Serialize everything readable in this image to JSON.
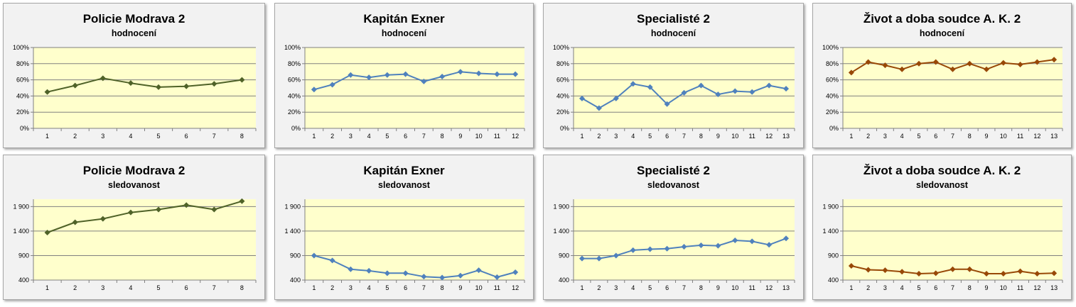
{
  "colors": {
    "plot_bg": "#ffffcc",
    "grid": "#808080",
    "series_green": "#4f6228",
    "series_blue": "#4f81bd",
    "series_brown": "#984807"
  },
  "chart_data": [
    {
      "type": "line",
      "title": "Policie Modrava 2",
      "subtitle": "hodnocení",
      "x": [
        1,
        2,
        3,
        4,
        5,
        6,
        7,
        8
      ],
      "values": [
        45,
        53,
        62,
        56,
        51,
        52,
        55,
        60
      ],
      "ylim": [
        0,
        100
      ],
      "yticks": [
        0,
        20,
        40,
        60,
        80,
        100
      ],
      "ytick_labels": [
        "0%",
        "20%",
        "40%",
        "60%",
        "80%",
        "100%"
      ],
      "color": "#4f6228",
      "grid": true,
      "legend": "none"
    },
    {
      "type": "line",
      "title": "Kapitán Exner",
      "subtitle": "hodnocení",
      "x": [
        1,
        2,
        3,
        4,
        5,
        6,
        7,
        8,
        9,
        10,
        11,
        12
      ],
      "values": [
        48,
        54,
        66,
        63,
        66,
        67,
        58,
        64,
        70,
        68,
        67,
        67
      ],
      "ylim": [
        0,
        100
      ],
      "yticks": [
        0,
        20,
        40,
        60,
        80,
        100
      ],
      "ytick_labels": [
        "0%",
        "20%",
        "40%",
        "60%",
        "80%",
        "100%"
      ],
      "color": "#4f81bd",
      "grid": true,
      "legend": "none"
    },
    {
      "type": "line",
      "title": "Specialisté 2",
      "subtitle": "hodnocení",
      "x": [
        1,
        2,
        3,
        4,
        5,
        6,
        7,
        8,
        9,
        10,
        11,
        12,
        13
      ],
      "values": [
        37,
        25,
        37,
        55,
        51,
        30,
        44,
        53,
        42,
        46,
        45,
        53,
        49
      ],
      "ylim": [
        0,
        100
      ],
      "yticks": [
        0,
        20,
        40,
        60,
        80,
        100
      ],
      "ytick_labels": [
        "0%",
        "20%",
        "40%",
        "60%",
        "80%",
        "100%"
      ],
      "color": "#4f81bd",
      "grid": true,
      "legend": "none"
    },
    {
      "type": "line",
      "title": "Život a doba soudce A. K. 2",
      "subtitle": "hodnocení",
      "x": [
        1,
        2,
        3,
        4,
        5,
        6,
        7,
        8,
        9,
        10,
        11,
        12,
        13
      ],
      "values": [
        69,
        82,
        78,
        73,
        80,
        82,
        73,
        80,
        73,
        81,
        79,
        82,
        85
      ],
      "ylim": [
        0,
        100
      ],
      "yticks": [
        0,
        20,
        40,
        60,
        80,
        100
      ],
      "ytick_labels": [
        "0%",
        "20%",
        "40%",
        "60%",
        "80%",
        "100%"
      ],
      "color": "#984807",
      "grid": true,
      "legend": "none"
    },
    {
      "type": "line",
      "title": "Policie Modrava 2",
      "subtitle": "sledovanost",
      "x": [
        1,
        2,
        3,
        4,
        5,
        6,
        7,
        8
      ],
      "values": [
        1370,
        1580,
        1650,
        1780,
        1840,
        1930,
        1840,
        2010
      ],
      "ylim": [
        400,
        2050
      ],
      "yticks": [
        400,
        900,
        1400,
        1900
      ],
      "ytick_labels": [
        "400",
        "900",
        "1 400",
        "1 900"
      ],
      "color": "#4f6228",
      "grid": true,
      "legend": "none"
    },
    {
      "type": "line",
      "title": "Kapitán Exner",
      "subtitle": "sledovanost",
      "x": [
        1,
        2,
        3,
        4,
        5,
        6,
        7,
        8,
        9,
        10,
        11,
        12
      ],
      "values": [
        900,
        800,
        620,
        590,
        540,
        540,
        470,
        450,
        490,
        600,
        460,
        560
      ],
      "ylim": [
        400,
        2050
      ],
      "yticks": [
        400,
        900,
        1400,
        1900
      ],
      "ytick_labels": [
        "400",
        "900",
        "1 400",
        "1 900"
      ],
      "color": "#4f81bd",
      "grid": true,
      "legend": "none"
    },
    {
      "type": "line",
      "title": "Specialisté 2",
      "subtitle": "sledovanost",
      "x": [
        1,
        2,
        3,
        4,
        5,
        6,
        7,
        8,
        9,
        10,
        11,
        12,
        13
      ],
      "values": [
        840,
        840,
        900,
        1010,
        1030,
        1040,
        1080,
        1110,
        1100,
        1210,
        1190,
        1120,
        1250
      ],
      "ylim": [
        400,
        2050
      ],
      "yticks": [
        400,
        900,
        1400,
        1900
      ],
      "ytick_labels": [
        "400",
        "900",
        "1 400",
        "1 900"
      ],
      "color": "#4f81bd",
      "grid": true,
      "legend": "none"
    },
    {
      "type": "line",
      "title": "Život a doba soudce A. K. 2",
      "subtitle": "sledovanost",
      "x": [
        1,
        2,
        3,
        4,
        5,
        6,
        7,
        8,
        9,
        10,
        11,
        12,
        13
      ],
      "values": [
        690,
        610,
        600,
        570,
        530,
        540,
        620,
        620,
        530,
        530,
        580,
        530,
        540
      ],
      "ylim": [
        400,
        2050
      ],
      "yticks": [
        400,
        900,
        1400,
        1900
      ],
      "ytick_labels": [
        "400",
        "900",
        "1 400",
        "1 900"
      ],
      "color": "#984807",
      "grid": true,
      "legend": "none"
    }
  ]
}
